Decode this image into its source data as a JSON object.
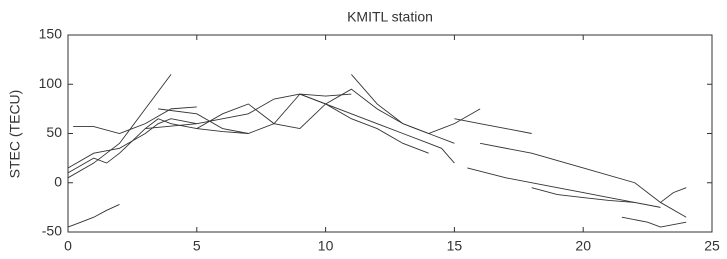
{
  "chart_data": {
    "type": "line",
    "title": "KMITL station",
    "ylabel": "STEC (TECU)",
    "xlim": [
      0,
      25
    ],
    "xticks": [
      0,
      5,
      10,
      15,
      20,
      25
    ],
    "ylim": [
      -50,
      150
    ],
    "yticks": [
      -50,
      0,
      50,
      100,
      150
    ],
    "color": "#333333",
    "series": [
      {
        "x": [
          0,
          1,
          2,
          3,
          4
        ],
        "values": [
          5,
          20,
          40,
          75,
          110
        ]
      },
      {
        "x": [
          0.2,
          1,
          2,
          3,
          4,
          5
        ],
        "values": [
          57,
          57,
          50,
          60,
          75,
          77
        ]
      },
      {
        "x": [
          0,
          1,
          1.5,
          2,
          3,
          3.5,
          4,
          5,
          6,
          7
        ],
        "values": [
          10,
          25,
          20,
          30,
          55,
          65,
          60,
          55,
          52,
          50
        ]
      },
      {
        "x": [
          0,
          1,
          2,
          3,
          3.5,
          4,
          5
        ],
        "values": [
          15,
          30,
          35,
          50,
          60,
          65,
          60
        ]
      },
      {
        "x": [
          0,
          0.5,
          1,
          1.5,
          2
        ],
        "values": [
          -45,
          -40,
          -35,
          -28,
          -22
        ]
      },
      {
        "x": [
          3,
          5,
          7,
          8,
          9,
          10,
          11
        ],
        "values": [
          55,
          60,
          70,
          85,
          90,
          88,
          90
        ]
      },
      {
        "x": [
          3.5,
          5,
          6,
          7,
          8,
          9,
          10,
          11,
          12,
          13,
          14
        ],
        "values": [
          75,
          70,
          55,
          50,
          60,
          90,
          80,
          65,
          55,
          40,
          30
        ]
      },
      {
        "x": [
          5,
          6,
          7,
          8,
          9,
          10,
          11,
          12,
          13,
          14,
          15
        ],
        "values": [
          55,
          70,
          80,
          60,
          55,
          80,
          95,
          75,
          60,
          50,
          40
        ]
      },
      {
        "x": [
          9,
          10,
          11,
          12,
          13,
          14,
          14.5,
          15
        ],
        "values": [
          90,
          80,
          70,
          60,
          50,
          40,
          35,
          20
        ]
      },
      {
        "x": [
          11,
          12,
          13,
          14,
          15,
          16
        ],
        "values": [
          110,
          80,
          60,
          50,
          60,
          75
        ]
      },
      {
        "x": [
          15,
          16,
          17,
          18
        ],
        "values": [
          65,
          60,
          55,
          50
        ]
      },
      {
        "x": [
          15.5,
          17,
          19,
          20,
          21,
          22,
          23
        ],
        "values": [
          15,
          5,
          -5,
          -10,
          -15,
          -20,
          -25
        ]
      },
      {
        "x": [
          16,
          18,
          20,
          22,
          23,
          24
        ],
        "values": [
          40,
          30,
          15,
          0,
          -20,
          -35
        ]
      },
      {
        "x": [
          18,
          19,
          20,
          21,
          22
        ],
        "values": [
          -5,
          -12,
          -15,
          -18,
          -20
        ]
      },
      {
        "x": [
          21.5,
          22.5,
          23,
          24
        ],
        "values": [
          -35,
          -40,
          -45,
          -40
        ]
      },
      {
        "x": [
          23,
          23.5,
          24
        ],
        "values": [
          -20,
          -10,
          -5
        ]
      }
    ]
  }
}
